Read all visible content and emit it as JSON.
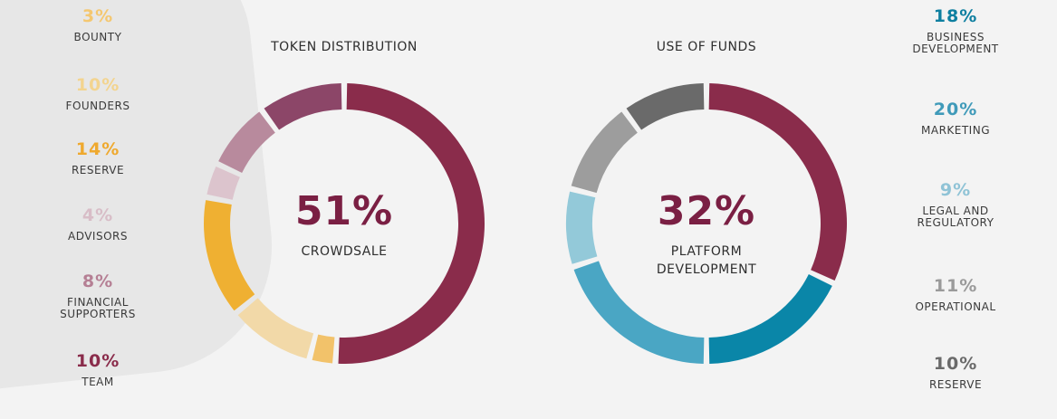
{
  "chart_data": [
    {
      "type": "pie",
      "title": "TOKEN DISTRIBUTION",
      "center_value": "51%",
      "center_label": "CROWDSALE",
      "slices": [
        {
          "label": "CROWDSALE",
          "value": 51,
          "color": "#8a2c4b"
        },
        {
          "label": "BOUNTY",
          "value": 3,
          "color": "#f2c26a"
        },
        {
          "label": "FOUNDERS",
          "value": 10,
          "color": "#f2d9a8"
        },
        {
          "label": "RESERVE",
          "value": 14,
          "color": "#efb032"
        },
        {
          "label": "ADVISORS",
          "value": 4,
          "color": "#dcc4cd"
        },
        {
          "label": "FINANCIAL SUPPORTERS",
          "value": 8,
          "color": "#b88a9d"
        },
        {
          "label": "TEAM",
          "value": 10,
          "color": "#8c4668"
        }
      ]
    },
    {
      "type": "pie",
      "title": "USE OF FUNDS",
      "center_value": "32%",
      "center_label": "PLATFORM DEVELOPMENT",
      "slices": [
        {
          "label": "PLATFORM DEVELOPMENT",
          "value": 32,
          "color": "#8a2c4b"
        },
        {
          "label": "BUSINESS DEVELOPMENT",
          "value": 18,
          "color": "#0a86a8"
        },
        {
          "label": "MARKETING",
          "value": 20,
          "color": "#4aa6c4"
        },
        {
          "label": "LEGAL AND REGULATORY",
          "value": 9,
          "color": "#93c9d9"
        },
        {
          "label": "OPERATIONAL",
          "value": 11,
          "color": "#9d9d9d"
        },
        {
          "label": "RESERVE",
          "value": 10,
          "color": "#6a6a6a"
        }
      ]
    }
  ],
  "left_legend": [
    {
      "pct": "3%",
      "label": "BOUNTY",
      "color": "#f4c770"
    },
    {
      "pct": "10%",
      "label": "FOUNDERS",
      "color": "#f3d48f"
    },
    {
      "pct": "14%",
      "label": "RESERVE",
      "color": "#efa92e"
    },
    {
      "pct": "4%",
      "label": "ADVISORS",
      "color": "#d8bdc7"
    },
    {
      "pct": "8%",
      "label": "FINANCIAL SUPPORTERS",
      "color": "#b57f94"
    },
    {
      "pct": "10%",
      "label": "TEAM",
      "color": "#8a2c4b"
    }
  ],
  "right_legend": [
    {
      "pct": "18%",
      "label": "BUSINESS DEVELOPMENT",
      "color": "#0e7fa0"
    },
    {
      "pct": "20%",
      "label": "MARKETING",
      "color": "#3f9ab9"
    },
    {
      "pct": "9%",
      "label": "LEGAL AND REGULATORY",
      "color": "#8fc3d6"
    },
    {
      "pct": "11%",
      "label": "OPERATIONAL",
      "color": "#9a9a9a"
    },
    {
      "pct": "10%",
      "label": "RESERVE",
      "color": "#6a6a6a"
    }
  ]
}
